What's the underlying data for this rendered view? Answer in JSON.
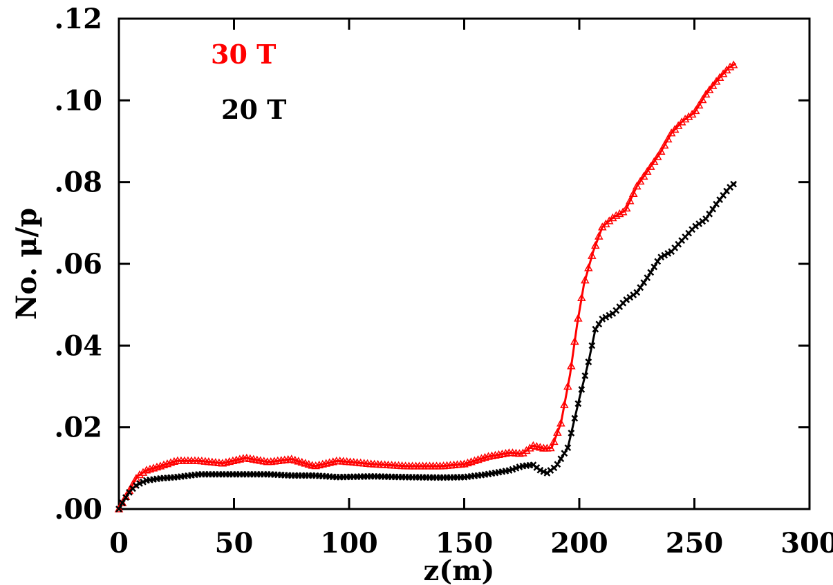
{
  "chart_data": {
    "type": "line",
    "title": "",
    "xlabel": "z(m)",
    "ylabel": "No. μ/p",
    "xlim": [
      0,
      300
    ],
    "ylim": [
      0,
      0.12
    ],
    "x_ticks": [
      0,
      50,
      100,
      150,
      200,
      250,
      300
    ],
    "x_tick_labels": [
      "0",
      "50",
      "100",
      "150",
      "200",
      "250",
      "300"
    ],
    "y_ticks": [
      0,
      0.02,
      0.04,
      0.06,
      0.08,
      0.1,
      0.12
    ],
    "y_tick_labels": [
      ".00",
      ".02",
      ".04",
      ".06",
      ".08",
      ".10",
      ".12"
    ],
    "grid": false,
    "legend_position": "top-left",
    "series": [
      {
        "name": "30 T",
        "color": "#ff0000",
        "marker": "triangle",
        "x": [
          0,
          2,
          5,
          8,
          12,
          18,
          25,
          35,
          45,
          55,
          65,
          75,
          85,
          95,
          110,
          125,
          140,
          150,
          160,
          170,
          175,
          180,
          185,
          188,
          192,
          196,
          199,
          202,
          206,
          210,
          215,
          220,
          225,
          230,
          235,
          240,
          245,
          250,
          255,
          260,
          265,
          268
        ],
        "y": [
          0,
          0.002,
          0.005,
          0.008,
          0.0095,
          0.0105,
          0.0118,
          0.0118,
          0.0112,
          0.0125,
          0.0115,
          0.0122,
          0.0105,
          0.0118,
          0.011,
          0.0105,
          0.0105,
          0.011,
          0.0128,
          0.0138,
          0.0135,
          0.0155,
          0.0148,
          0.015,
          0.021,
          0.033,
          0.045,
          0.055,
          0.063,
          0.069,
          0.0715,
          0.073,
          0.079,
          0.083,
          0.087,
          0.092,
          0.095,
          0.097,
          0.1015,
          0.105,
          0.108,
          0.109
        ]
      },
      {
        "name": "20 T",
        "color": "#000000",
        "marker": "x",
        "x": [
          0,
          2,
          5,
          8,
          12,
          18,
          25,
          35,
          45,
          55,
          65,
          75,
          85,
          95,
          110,
          125,
          140,
          150,
          160,
          170,
          175,
          180,
          183,
          186,
          190,
          195,
          200,
          204,
          207,
          210,
          215,
          220,
          225,
          230,
          235,
          240,
          245,
          250,
          255,
          260,
          265,
          268
        ],
        "y": [
          0,
          0.002,
          0.0045,
          0.006,
          0.007,
          0.0075,
          0.0078,
          0.0085,
          0.0085,
          0.0085,
          0.0085,
          0.0082,
          0.0082,
          0.0078,
          0.008,
          0.0078,
          0.0077,
          0.0078,
          0.0085,
          0.0095,
          0.0105,
          0.0108,
          0.0095,
          0.0088,
          0.0105,
          0.015,
          0.027,
          0.036,
          0.044,
          0.0465,
          0.048,
          0.051,
          0.053,
          0.057,
          0.0615,
          0.063,
          0.066,
          0.069,
          0.071,
          0.075,
          0.0785,
          0.08
        ]
      }
    ]
  }
}
